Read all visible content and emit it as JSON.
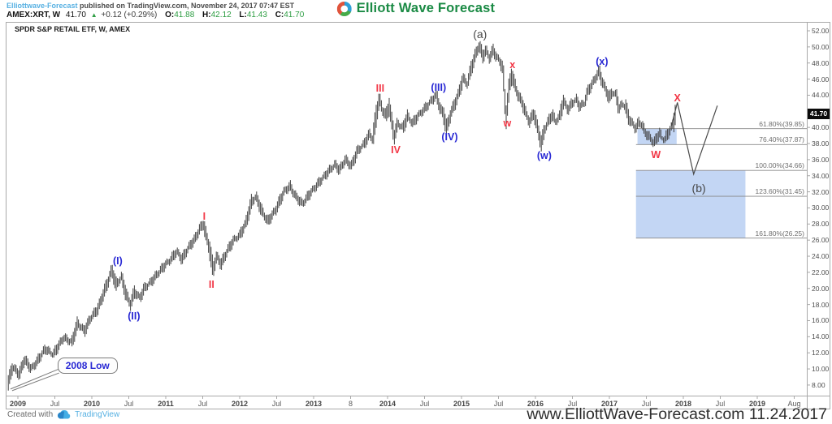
{
  "header": {
    "byline": {
      "link_text": "Elliottwave-Forecast",
      "rest": " published on TradingView.com, November 24, 2017 07:47 EST"
    },
    "ticker": {
      "symbol": "AMEX:XRT, W",
      "price": "41.70",
      "change": "+0.12 (+0.29%)",
      "ohlc": [
        [
          "O:",
          "41.88"
        ],
        [
          "H:",
          "42.12"
        ],
        [
          "L:",
          "41.43"
        ],
        [
          "C:",
          "41.70"
        ]
      ]
    },
    "logo_text": "Elliott Wave Forecast"
  },
  "chart": {
    "title": "SPDR S&P RETAIL ETF, W, AMEX",
    "price_tag": "41.70"
  },
  "footer": {
    "created_with": "Created with",
    "tradingview_label": "TradingView",
    "watermark": "www.ElliottWave-Forecast.com 11.24.2017"
  },
  "colors": {
    "bars": "#3f3f3f",
    "projection": "#4a4a4a",
    "fib_line": "#8a8a8a",
    "frame": "#a9a9a9",
    "target_box": "#c3d6f4",
    "wave_blue": "#2828d4",
    "wave_red": "#f23645",
    "green": "#2f9e44",
    "link_blue": "#56b0e2",
    "logo_green": "#1a8a44"
  },
  "chart_data": {
    "type": "bar",
    "title": "SPDR S&P RETAIL ETF, W, AMEX",
    "symbol": "AMEX:XRT",
    "timeframe": "W",
    "last_price": 41.7,
    "x_axis": {
      "first_tick_year": 2009,
      "tick_interval_years": 0.5,
      "tick_labels": [
        "2009",
        "Jul",
        "2010",
        "Jul",
        "2011",
        "Jul",
        "2012",
        "Jul",
        "2013",
        "8",
        "2014",
        "Jul",
        "2015",
        "Jul",
        "2016",
        "Jul",
        "2017",
        "Jul",
        "2018",
        "Jul",
        "2019",
        "Aug"
      ]
    },
    "y_axis": {
      "min": 8,
      "max": 52,
      "tick_step": 2
    },
    "series": [
      [
        2008.87,
        8.3
      ],
      [
        2008.93,
        10.3
      ],
      [
        2009.02,
        9.3
      ],
      [
        2009.09,
        11.2
      ],
      [
        2009.18,
        10.0
      ],
      [
        2009.26,
        10.9
      ],
      [
        2009.37,
        12.5
      ],
      [
        2009.48,
        11.8
      ],
      [
        2009.62,
        13.9
      ],
      [
        2009.73,
        13.3
      ],
      [
        2009.81,
        15.7
      ],
      [
        2009.9,
        14.7
      ],
      [
        2009.99,
        16.4
      ],
      [
        2010.08,
        17.4
      ],
      [
        2010.16,
        19.4
      ],
      [
        2010.23,
        21.1
      ],
      [
        2010.27,
        22.3
      ],
      [
        2010.33,
        20.4
      ],
      [
        2010.4,
        21.4
      ],
      [
        2010.46,
        19.4
      ],
      [
        2010.52,
        18.0
      ],
      [
        2010.58,
        19.6
      ],
      [
        2010.65,
        18.8
      ],
      [
        2010.71,
        20.0
      ],
      [
        2010.8,
        20.8
      ],
      [
        2010.89,
        21.8
      ],
      [
        2010.98,
        22.8
      ],
      [
        2011.07,
        23.6
      ],
      [
        2011.15,
        24.6
      ],
      [
        2011.22,
        23.6
      ],
      [
        2011.31,
        25.1
      ],
      [
        2011.4,
        26.2
      ],
      [
        2011.46,
        27.4
      ],
      [
        2011.51,
        28.0
      ],
      [
        2011.55,
        26.4
      ],
      [
        2011.59,
        25.0
      ],
      [
        2011.64,
        22.3
      ],
      [
        2011.69,
        24.0
      ],
      [
        2011.75,
        23.0
      ],
      [
        2011.84,
        24.8
      ],
      [
        2011.92,
        26.0
      ],
      [
        2012.0,
        26.6
      ],
      [
        2012.08,
        28.0
      ],
      [
        2012.16,
        30.7
      ],
      [
        2012.22,
        31.4
      ],
      [
        2012.3,
        29.6
      ],
      [
        2012.38,
        28.3
      ],
      [
        2012.49,
        29.8
      ],
      [
        2012.6,
        32.0
      ],
      [
        2012.68,
        32.7
      ],
      [
        2012.76,
        31.4
      ],
      [
        2012.85,
        30.5
      ],
      [
        2012.96,
        31.9
      ],
      [
        2013.07,
        33.1
      ],
      [
        2013.18,
        34.3
      ],
      [
        2013.29,
        35.4
      ],
      [
        2013.35,
        34.7
      ],
      [
        2013.43,
        36.0
      ],
      [
        2013.51,
        35.2
      ],
      [
        2013.59,
        37.0
      ],
      [
        2013.68,
        37.9
      ],
      [
        2013.76,
        39.2
      ],
      [
        2013.8,
        38.5
      ],
      [
        2013.85,
        41.7
      ],
      [
        2013.89,
        43.5
      ],
      [
        2013.93,
        42.2
      ],
      [
        2013.98,
        41.4
      ],
      [
        2014.02,
        42.7
      ],
      [
        2014.09,
        38.9
      ],
      [
        2014.14,
        40.5
      ],
      [
        2014.21,
        39.9
      ],
      [
        2014.27,
        41.4
      ],
      [
        2014.34,
        40.5
      ],
      [
        2014.41,
        41.4
      ],
      [
        2014.47,
        42.0
      ],
      [
        2014.54,
        42.7
      ],
      [
        2014.59,
        43.3
      ],
      [
        2014.66,
        44.0
      ],
      [
        2014.71,
        42.4
      ],
      [
        2014.76,
        41.5
      ],
      [
        2014.8,
        39.8
      ],
      [
        2014.86,
        41.9
      ],
      [
        2014.91,
        42.9
      ],
      [
        2014.97,
        44.4
      ],
      [
        2015.02,
        46.1
      ],
      [
        2015.08,
        45.4
      ],
      [
        2015.13,
        47.3
      ],
      [
        2015.19,
        49.0
      ],
      [
        2015.24,
        50.2
      ],
      [
        2015.29,
        48.8
      ],
      [
        2015.33,
        49.6
      ],
      [
        2015.38,
        48.6
      ],
      [
        2015.43,
        49.6
      ],
      [
        2015.47,
        48.8
      ],
      [
        2015.52,
        48.2
      ],
      [
        2015.56,
        47.3
      ],
      [
        2015.6,
        41.1
      ],
      [
        2015.65,
        45.3
      ],
      [
        2015.68,
        46.6
      ],
      [
        2015.73,
        45.0
      ],
      [
        2015.77,
        43.9
      ],
      [
        2015.82,
        43.1
      ],
      [
        2015.88,
        41.5
      ],
      [
        2015.92,
        40.7
      ],
      [
        2015.98,
        41.8
      ],
      [
        2016.02,
        40.2
      ],
      [
        2016.08,
        38.0
      ],
      [
        2016.13,
        39.9
      ],
      [
        2016.19,
        41.0
      ],
      [
        2016.23,
        41.6
      ],
      [
        2016.27,
        40.7
      ],
      [
        2016.33,
        41.4
      ],
      [
        2016.38,
        43.3
      ],
      [
        2016.44,
        42.2
      ],
      [
        2016.49,
        42.9
      ],
      [
        2016.55,
        43.5
      ],
      [
        2016.6,
        42.6
      ],
      [
        2016.66,
        43.0
      ],
      [
        2016.71,
        44.5
      ],
      [
        2016.77,
        45.4
      ],
      [
        2016.81,
        46.1
      ],
      [
        2016.86,
        47.0
      ],
      [
        2016.9,
        45.8
      ],
      [
        2016.96,
        44.5
      ],
      [
        2017.0,
        43.6
      ],
      [
        2017.04,
        44.4
      ],
      [
        2017.09,
        44.0
      ],
      [
        2017.13,
        42.4
      ],
      [
        2017.18,
        42.9
      ],
      [
        2017.22,
        42.6
      ],
      [
        2017.26,
        41.2
      ],
      [
        2017.31,
        40.5
      ],
      [
        2017.35,
        39.9
      ],
      [
        2017.4,
        40.6
      ],
      [
        2017.44,
        40.4
      ],
      [
        2017.48,
        39.4
      ],
      [
        2017.53,
        38.9
      ],
      [
        2017.57,
        38.5
      ],
      [
        2017.6,
        38.0
      ],
      [
        2017.64,
        38.7
      ],
      [
        2017.68,
        39.3
      ],
      [
        2017.71,
        38.7
      ],
      [
        2017.75,
        38.5
      ],
      [
        2017.78,
        39.0
      ],
      [
        2017.81,
        39.5
      ],
      [
        2017.85,
        40.2
      ],
      [
        2017.87,
        40.6
      ],
      [
        2017.89,
        41.7
      ]
    ],
    "projection": [
      [
        2017.84,
        40.2
      ],
      [
        2017.92,
        43.1
      ],
      [
        2018.14,
        34.2
      ],
      [
        2018.46,
        42.7
      ]
    ],
    "fib_start_year": 2017.36,
    "fib_levels": [
      {
        "label": "61.80%(39.85)",
        "price": 39.85
      },
      {
        "label": "76.40%(37.87)",
        "price": 37.87
      },
      {
        "label": "100.00%(34.66)",
        "price": 34.66
      },
      {
        "label": "123.60%(31.45)",
        "price": 31.45
      },
      {
        "label": "161.80%(26.25)",
        "price": 26.25
      }
    ],
    "target_boxes": [
      {
        "year_start": 2017.38,
        "year_end": 2017.91,
        "price_top": 39.85,
        "price_bottom": 37.87
      },
      {
        "year_start": 2017.36,
        "year_end": 2018.84,
        "price_top": 34.66,
        "price_bottom": 26.25
      }
    ],
    "wave_labels": [
      {
        "text": "(I)",
        "color": "blue",
        "year": 2010.35,
        "price": 23.4
      },
      {
        "text": "(II)",
        "color": "blue",
        "year": 2010.57,
        "price": 16.6
      },
      {
        "text": "I",
        "color": "red",
        "year": 2011.52,
        "price": 28.9
      },
      {
        "text": "II",
        "color": "red",
        "year": 2011.62,
        "price": 20.5
      },
      {
        "text": "III",
        "color": "red",
        "year": 2013.9,
        "price": 44.9
      },
      {
        "text": "IV",
        "color": "red",
        "year": 2014.11,
        "price": 37.2
      },
      {
        "text": "(III)",
        "color": "blue",
        "year": 2014.69,
        "price": 45.0
      },
      {
        "text": "(IV)",
        "color": "blue",
        "year": 2014.84,
        "price": 38.8
      },
      {
        "text": "(a)",
        "color": "dark",
        "year": 2015.25,
        "price": 51.6
      },
      {
        "text": "w",
        "color": "red",
        "year": 2015.62,
        "price": 40.5
      },
      {
        "text": "x",
        "color": "red",
        "year": 2015.69,
        "price": 47.8
      },
      {
        "text": "(w)",
        "color": "blue",
        "year": 2016.12,
        "price": 36.5
      },
      {
        "text": "(x)",
        "color": "blue",
        "year": 2016.9,
        "price": 48.2
      },
      {
        "text": "W",
        "color": "red",
        "year": 2017.63,
        "price": 36.6
      },
      {
        "text": "X",
        "color": "red",
        "year": 2017.92,
        "price": 43.6
      },
      {
        "text": "(b)",
        "color": "dark",
        "year": 2018.21,
        "price": 32.5
      }
    ],
    "callout": {
      "text": "2008 Low",
      "year": 2009.92,
      "price": 10.4,
      "tail_year": 2008.9,
      "tail_price": 7.3
    }
  }
}
